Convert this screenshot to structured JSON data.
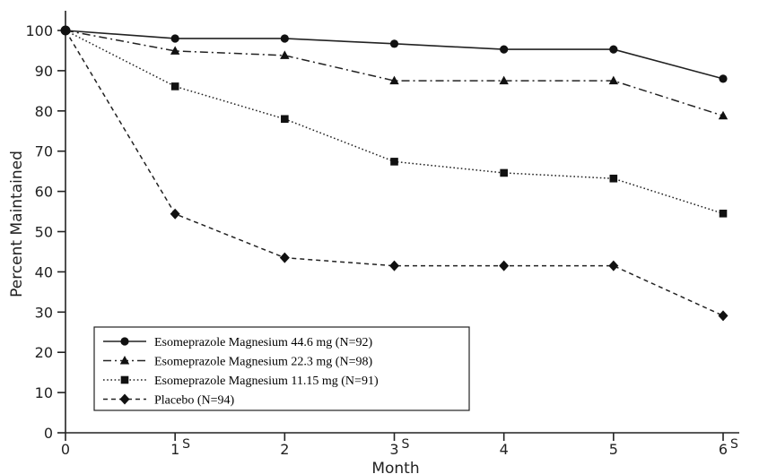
{
  "chart_data": {
    "type": "line",
    "xlabel": "Month",
    "ylabel": "Percent Maintained",
    "xlim": [
      0,
      6
    ],
    "ylim": [
      0,
      100
    ],
    "x_ticks": [
      "0",
      "1",
      "2",
      "3",
      "4",
      "5",
      "6"
    ],
    "x_tick_superscripts": [
      "",
      "S",
      "",
      "S",
      "",
      "",
      "S"
    ],
    "y_ticks": [
      "0",
      "10",
      "20",
      "30",
      "40",
      "50",
      "60",
      "70",
      "80",
      "90",
      "100"
    ],
    "grid": false,
    "legend_position": "bottom-left",
    "x": [
      0,
      1,
      2,
      3,
      4,
      5,
      6
    ],
    "series": [
      {
        "name": "Esomeprazole Magnesium 44.6 mg (N=92)",
        "marker": "circle",
        "dash": "solid",
        "values": [
          100,
          98,
          98,
          96.7,
          95.3,
          95.3,
          88
        ]
      },
      {
        "name": "Esomeprazole Magnesium 22.3 mg (N=98)",
        "marker": "triangle",
        "dash": "dashdot",
        "values": [
          100,
          94.9,
          93.8,
          87.5,
          87.5,
          87.5,
          78.8
        ]
      },
      {
        "name": "Esomeprazole Magnesium 11.15 mg (N=91)",
        "marker": "square",
        "dash": "dotted",
        "values": [
          100,
          86.1,
          78,
          67.4,
          64.6,
          63.2,
          54.5
        ]
      },
      {
        "name": "Placebo (N=94)",
        "marker": "diamond",
        "dash": "dashed",
        "values": [
          100,
          54.4,
          43.5,
          41.5,
          41.5,
          41.5,
          29.1
        ]
      }
    ]
  }
}
